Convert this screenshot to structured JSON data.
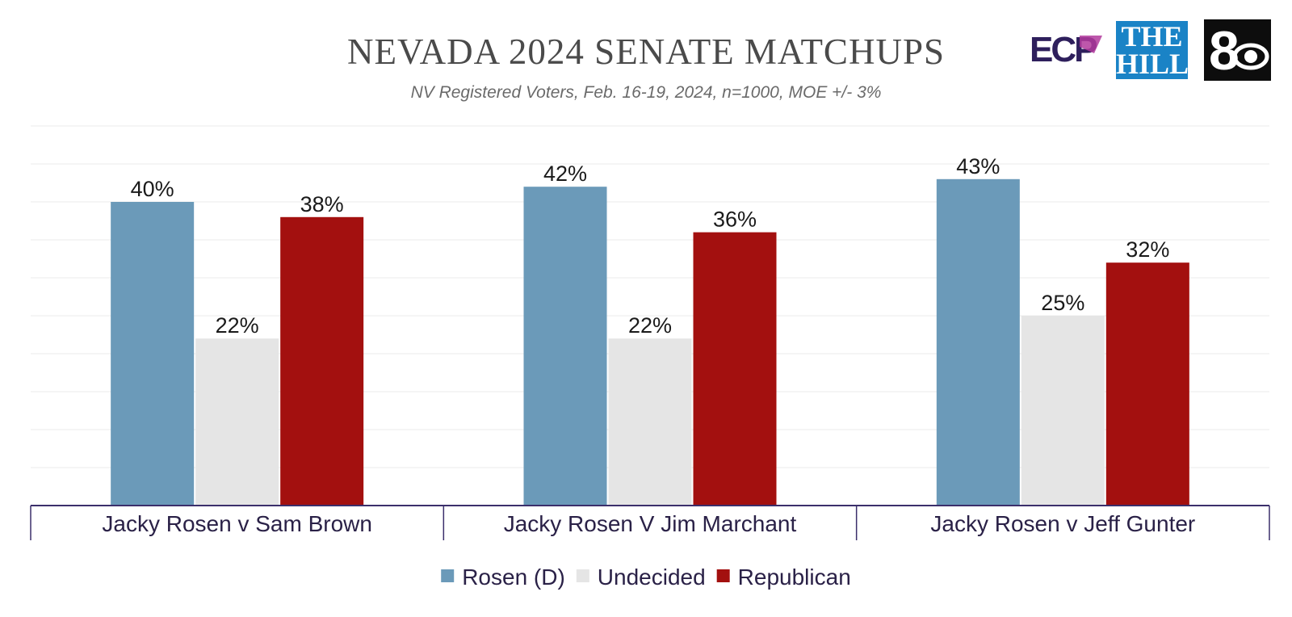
{
  "header": {
    "title": "NEVADA 2024 SENATE MATCHUPS",
    "subtitle": "NV Registered Voters, Feb. 16-19, 2024, n=1000, MOE +/- 3%"
  },
  "logos": {
    "ecp": "ECP",
    "hill_line1": "THE",
    "hill_line2": "HILL",
    "station": "8"
  },
  "colors": {
    "rosen": "#6b9ab9",
    "undecided": "#e5e5e5",
    "republican": "#a3100f",
    "axis": "#3b2f6b"
  },
  "chart_data": {
    "type": "bar",
    "title": "NEVADA 2024 SENATE MATCHUPS",
    "subtitle": "NV Registered Voters, Feb. 16-19, 2024, n=1000, MOE +/- 3%",
    "categories": [
      "Jacky Rosen v Sam Brown",
      "Jacky Rosen V Jim Marchant",
      "Jacky Rosen v Jeff Gunter"
    ],
    "series": [
      {
        "name": "Rosen (D)",
        "values": [
          40,
          42,
          43
        ],
        "labels": [
          "40%",
          "42%",
          "43%"
        ]
      },
      {
        "name": "Undecided",
        "values": [
          22,
          22,
          25
        ],
        "labels": [
          "22%",
          "22%",
          "25%"
        ]
      },
      {
        "name": "Republican",
        "values": [
          38,
          36,
          32
        ],
        "labels": [
          "38%",
          "36%",
          "32%"
        ]
      }
    ],
    "ylim": [
      0,
      50
    ],
    "grid": true,
    "legend_position": "bottom"
  }
}
